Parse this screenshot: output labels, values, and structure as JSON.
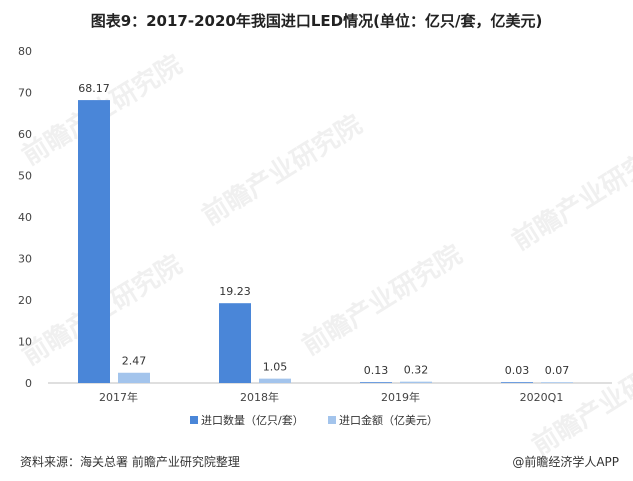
{
  "chart_data": {
    "type": "bar",
    "title": "图表9：2017-2020年我国进口LED情况(单位：亿只/套，亿美元)",
    "categories": [
      "2017年",
      "2018年",
      "2019年",
      "2020Q1"
    ],
    "series": [
      {
        "name": "进口数量（亿只/套）",
        "values": [
          68.17,
          19.23,
          0.13,
          0.03
        ],
        "labels": [
          "68.17",
          "19.23",
          "0.13",
          "0.03"
        ],
        "color": "#4a86d8"
      },
      {
        "name": "进口金额（亿美元）",
        "values": [
          2.47,
          1.05,
          0.32,
          0.07
        ],
        "labels": [
          "2.47",
          "1.05",
          "0.32",
          "0.07"
        ],
        "color": "#a3c4ec"
      }
    ],
    "ylim": [
      0,
      80
    ],
    "yticks": [
      0,
      10,
      20,
      30,
      40,
      50,
      60,
      70,
      80
    ],
    "grid": false,
    "legend": "bottom"
  },
  "footer": {
    "source": "资料来源：海关总署 前瞻产业研究院整理",
    "brand": "@前瞻经济学人APP"
  },
  "watermark": {
    "text": "前瞻产业研究院"
  }
}
